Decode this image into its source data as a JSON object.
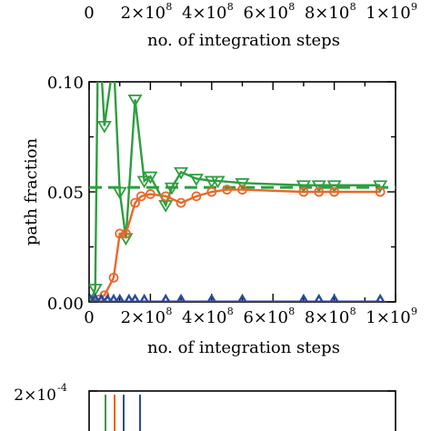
{
  "chart_data": [
    {
      "type": "line",
      "panel": "top-partial",
      "xlabel": "no. of integration steps",
      "x_tick_labels": [
        "0",
        "2×10",
        "4×10",
        "6×10",
        "8×10",
        "1×10"
      ],
      "x_tick_exponents": [
        "",
        "8",
        "8",
        "8",
        "8",
        "9"
      ]
    },
    {
      "type": "line",
      "panel": "middle",
      "xlabel": "no. of integration steps",
      "ylabel": "path fraction",
      "xlim": [
        0,
        1000000000
      ],
      "ylim": [
        0,
        0.1
      ],
      "x_tick_labels": [
        "0",
        "2×10",
        "4×10",
        "6×10",
        "8×10",
        "1×10"
      ],
      "x_tick_exponents": [
        "",
        "8",
        "8",
        "8",
        "8",
        "9"
      ],
      "y_tick_labels": [
        "0.00",
        "0.05",
        "0.10"
      ],
      "reference_line": {
        "y": 0.052,
        "style": "dashed",
        "color": "#2e9e3e"
      },
      "series": [
        {
          "color": "#2e9e3e",
          "marker": "triangle-down",
          "x": [
            5000000,
            20000000,
            30000000,
            50000000,
            80000000,
            100000000,
            120000000,
            150000000,
            180000000,
            200000000,
            250000000,
            270000000,
            300000000,
            350000000,
            400000000,
            420000000,
            500000000,
            700000000,
            750000000,
            800000000,
            950000000
          ],
          "y": [
            0.0,
            0.006,
            0.13,
            0.08,
            0.11,
            0.05,
            0.029,
            0.092,
            0.055,
            0.057,
            0.044,
            0.052,
            0.059,
            0.056,
            0.055,
            0.055,
            0.054,
            0.053,
            0.053,
            0.053,
            0.053
          ]
        },
        {
          "color": "#e8682a",
          "marker": "circle",
          "x": [
            5000000,
            30000000,
            50000000,
            80000000,
            100000000,
            120000000,
            150000000,
            170000000,
            200000000,
            250000000,
            300000000,
            350000000,
            400000000,
            450000000,
            500000000,
            700000000,
            750000000,
            800000000,
            950000000
          ],
          "y": [
            0.0,
            0.001,
            0.003,
            0.011,
            0.031,
            0.031,
            0.045,
            0.048,
            0.049,
            0.048,
            0.045,
            0.048,
            0.05,
            0.051,
            0.051,
            0.05,
            0.05,
            0.05,
            0.05
          ]
        },
        {
          "color": "#2c4a9e",
          "marker": "triangle-up",
          "x": [
            5000000,
            20000000,
            40000000,
            60000000,
            80000000,
            100000000,
            130000000,
            150000000,
            180000000,
            250000000,
            300000000,
            400000000,
            500000000,
            700000000,
            750000000,
            800000000,
            950000000
          ],
          "y": [
            0.0,
            0.0003,
            0.0001,
            0.0001,
            0.0001,
            0.0001,
            0.0001,
            0.0001,
            0.0001,
            0.0001,
            0.0001,
            0.0001,
            0.0001,
            0.0001,
            0.0001,
            0.0001,
            0.0001
          ]
        }
      ]
    },
    {
      "type": "line",
      "panel": "bottom-partial",
      "y_tick_labels": [
        "2×10"
      ],
      "y_tick_exponents": [
        "-4"
      ]
    }
  ]
}
